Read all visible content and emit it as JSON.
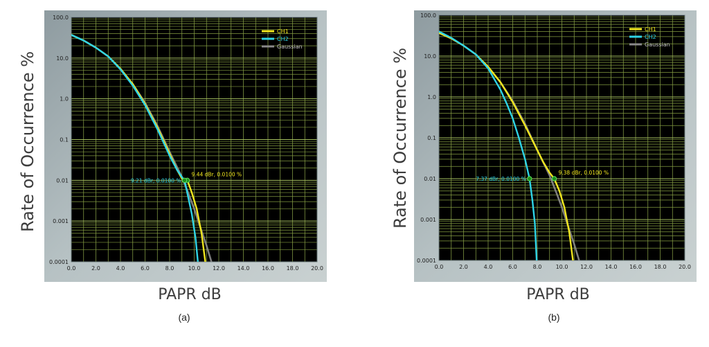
{
  "chart_data": [
    {
      "type": "line",
      "caption": "(a)",
      "xlabel": "PAPR dB",
      "ylabel": "Rate of Occurrence %",
      "xlim": [
        0,
        20
      ],
      "ylim": [
        0.0001,
        100
      ],
      "yscale": "log",
      "x_ticks": [
        "0.0",
        "2.0",
        "4.0",
        "6.0",
        "8.0",
        "10.0",
        "12.0",
        "14.0",
        "16.0",
        "18.0",
        "20.0"
      ],
      "y_ticks": [
        "100.0",
        "10.0",
        "1.0",
        "0.1",
        "0.01",
        "0.001",
        "0.0001"
      ],
      "grid": true,
      "legend": "top-right",
      "series": [
        {
          "name": "CH1",
          "color": "#f0e61e",
          "x": [
            0,
            1,
            2,
            3,
            4,
            5,
            6,
            7,
            8,
            8.6,
            9.0,
            9.44,
            9.8,
            10.2,
            10.6,
            10.9
          ],
          "y": [
            37,
            27,
            18,
            11,
            5.5,
            2.3,
            0.75,
            0.2,
            0.045,
            0.018,
            0.011,
            0.01,
            0.005,
            0.002,
            0.0005,
            0.0001
          ]
        },
        {
          "name": "CH2",
          "color": "#2fd4e6",
          "x": [
            0,
            1,
            2,
            3,
            4,
            5,
            6,
            7,
            8,
            8.6,
            9.0,
            9.21,
            9.5,
            9.8,
            10.1,
            10.3
          ],
          "y": [
            37,
            27,
            18,
            11,
            5.3,
            2.1,
            0.7,
            0.18,
            0.04,
            0.018,
            0.012,
            0.01,
            0.004,
            0.0015,
            0.0004,
            0.0001
          ]
        },
        {
          "name": "Gaussian",
          "color": "#8a8a8a",
          "x": [
            0,
            1,
            2,
            3,
            4,
            5,
            6,
            7,
            8,
            9,
            9.5,
            10,
            10.5,
            11,
            11.4
          ],
          "y": [
            37,
            27,
            18,
            11,
            5.3,
            2.3,
            0.8,
            0.22,
            0.05,
            0.012,
            0.005,
            0.002,
            0.0007,
            0.00025,
            0.0001
          ]
        }
      ],
      "markers": [
        {
          "series": "CH1",
          "x": 9.44,
          "y": 0.01,
          "label": "9.44 dBr, 0.0100 %"
        },
        {
          "series": "CH2",
          "x": 9.21,
          "y": 0.01,
          "label": "9.21 dBr, 0.0100 %"
        }
      ]
    },
    {
      "type": "line",
      "caption": "(b)",
      "xlabel": "PAPR dB",
      "ylabel": "Rate of Occurrence %",
      "xlim": [
        0,
        20
      ],
      "ylim": [
        0.0001,
        100
      ],
      "yscale": "log",
      "x_ticks": [
        "0.0",
        "2.0",
        "4.0",
        "6.0",
        "8.0",
        "10.0",
        "12.0",
        "14.0",
        "16.0",
        "18.0",
        "20.0"
      ],
      "y_ticks": [
        "100.0",
        "10.0",
        "1.0",
        "0.1",
        "0.01",
        "0.001",
        "0.0001"
      ],
      "grid": true,
      "legend": "top-right",
      "series": [
        {
          "name": "CH1",
          "color": "#f0e61e",
          "x": [
            0,
            1,
            2,
            3,
            4,
            5,
            6,
            7,
            8,
            8.5,
            9.0,
            9.38,
            9.8,
            10.2,
            10.6,
            10.9
          ],
          "y": [
            37,
            27,
            18,
            11,
            5.5,
            2.3,
            0.75,
            0.2,
            0.05,
            0.025,
            0.014,
            0.01,
            0.005,
            0.002,
            0.0005,
            0.0001
          ]
        },
        {
          "name": "CH2",
          "color": "#2fd4e6",
          "x": [
            0,
            1,
            2,
            3,
            4,
            5,
            5.5,
            6,
            6.5,
            7,
            7.37,
            7.6,
            7.8,
            7.95
          ],
          "y": [
            40,
            28,
            18,
            11,
            5,
            1.5,
            0.7,
            0.3,
            0.1,
            0.03,
            0.01,
            0.003,
            0.0008,
            0.0001
          ]
        },
        {
          "name": "Gaussian",
          "color": "#8a8a8a",
          "x": [
            0,
            1,
            2,
            3,
            4,
            5,
            6,
            7,
            8,
            9,
            9.5,
            10,
            10.5,
            11,
            11.4
          ],
          "y": [
            37,
            27,
            18,
            11,
            5.3,
            2.3,
            0.8,
            0.22,
            0.05,
            0.012,
            0.005,
            0.002,
            0.0007,
            0.00025,
            0.0001
          ]
        }
      ],
      "markers": [
        {
          "series": "CH1",
          "x": 9.38,
          "y": 0.01,
          "label": "9.38 dBr, 0.0100 %"
        },
        {
          "series": "CH2",
          "x": 7.37,
          "y": 0.01,
          "label": "7.37 dBr, 0.0100 %"
        }
      ]
    }
  ]
}
